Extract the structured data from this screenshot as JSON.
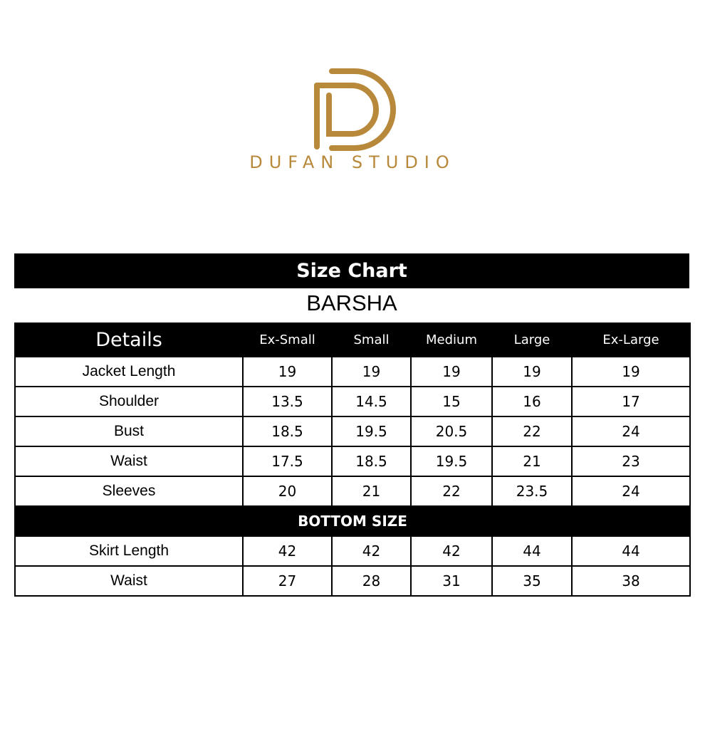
{
  "brand": {
    "name": "DUFAN STUDIO",
    "color": "#b8893a",
    "logo_icon": "dd-monogram"
  },
  "chart": {
    "title": "Size Chart",
    "product": "BARSHA",
    "columns": [
      "Details",
      "Ex-Small",
      "Small",
      "Medium",
      "Large",
      "Ex-Large"
    ],
    "top_rows": [
      {
        "label": "Jacket Length",
        "values": [
          "19",
          "19",
          "19",
          "19",
          "19"
        ]
      },
      {
        "label": "Shoulder",
        "values": [
          "13.5",
          "14.5",
          "15",
          "16",
          "17"
        ]
      },
      {
        "label": "Bust",
        "values": [
          "18.5",
          "19.5",
          "20.5",
          "22",
          "24"
        ]
      },
      {
        "label": "Waist",
        "values": [
          "17.5",
          "18.5",
          "19.5",
          "21",
          "23"
        ]
      },
      {
        "label": "Sleeves",
        "values": [
          "20",
          "21",
          "22",
          "23.5",
          "24"
        ]
      }
    ],
    "bottom_section_label": "BOTTOM SIZE",
    "bottom_rows": [
      {
        "label": "Skirt Length",
        "values": [
          "42",
          "42",
          "42",
          "44",
          "44"
        ]
      },
      {
        "label": "Waist",
        "values": [
          "27",
          "28",
          "31",
          "35",
          "38"
        ]
      }
    ]
  }
}
